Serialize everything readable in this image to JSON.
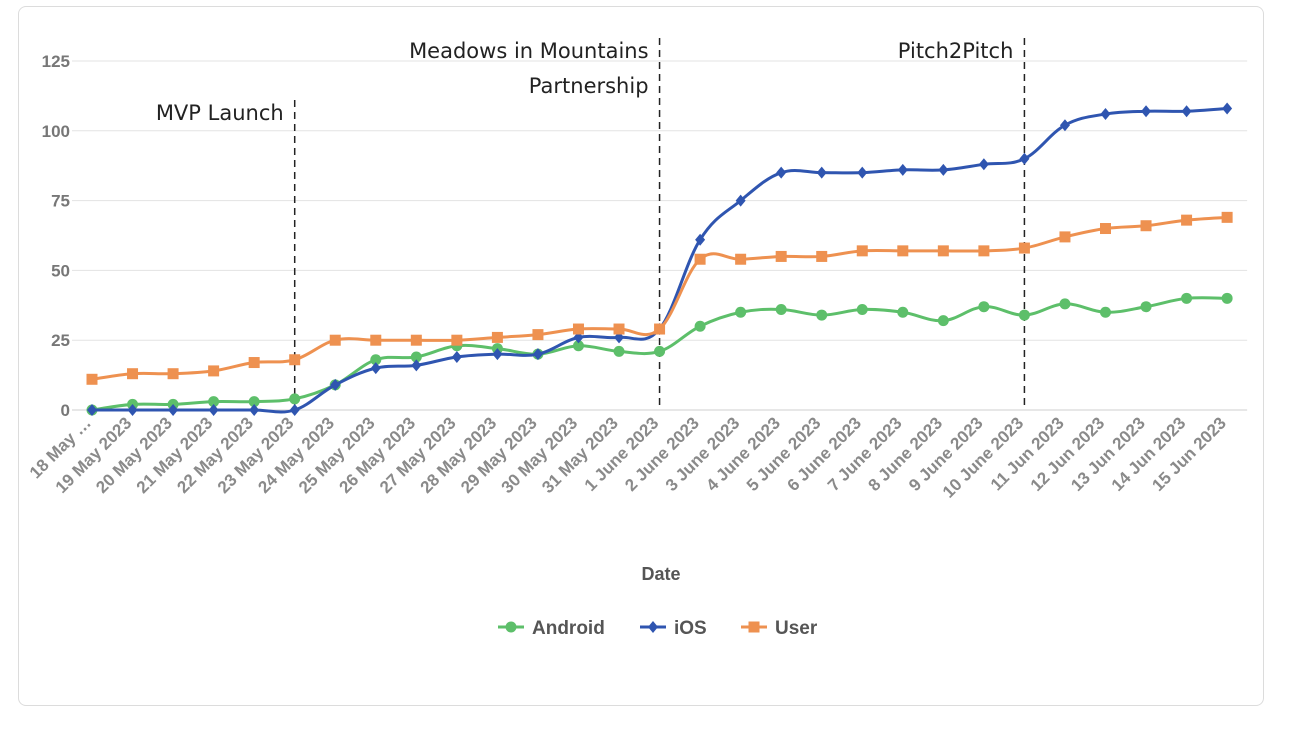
{
  "chart_data": {
    "type": "line",
    "xlabel": "Date",
    "ylabel": "",
    "ylim": [
      0,
      125
    ],
    "yticks": [
      0,
      25,
      50,
      75,
      100,
      125
    ],
    "grid": true,
    "legend_position": "bottom",
    "categories": [
      "18 May …",
      "19 May 2023",
      "20 May 2023",
      "21 May 2023",
      "22 May 2023",
      "23 May 2023",
      "24 May 2023",
      "25 May 2023",
      "26 May 2023",
      "27 May 2023",
      "28 May 2023",
      "29 May 2023",
      "30 May 2023",
      "31 May 2023",
      "1 June 2023",
      "2 June 2023",
      "3 June 2023",
      "4 June 2023",
      "5 June 2023",
      "6 June 2023",
      "7 June 2023",
      "8 June 2023",
      "9 June 2023",
      "10 June 2023",
      "11 Jun 2023",
      "12 Jun 2023",
      "13 Jun 2023",
      "14 Jun 2023",
      "15 Jun 2023"
    ],
    "series": [
      {
        "name": "Android",
        "color": "#5dbf6a",
        "marker": "circle",
        "values": [
          0,
          2,
          2,
          3,
          3,
          4,
          9,
          18,
          19,
          23,
          22,
          20,
          23,
          21,
          21,
          30,
          35,
          36,
          34,
          36,
          35,
          32,
          37,
          34,
          38,
          35,
          37,
          40,
          40
        ]
      },
      {
        "name": "iOS",
        "color": "#2f55b0",
        "marker": "diamond",
        "values": [
          0,
          0,
          0,
          0,
          0,
          0,
          9,
          15,
          16,
          19,
          20,
          20,
          26,
          26,
          29,
          61,
          75,
          85,
          85,
          85,
          86,
          86,
          88,
          90,
          102,
          106,
          107,
          107,
          108
        ]
      },
      {
        "name": "User",
        "color": "#ee9150",
        "marker": "square",
        "values": [
          11,
          13,
          13,
          14,
          17,
          18,
          25,
          25,
          25,
          25,
          26,
          27,
          29,
          29,
          29,
          54,
          54,
          55,
          55,
          57,
          57,
          57,
          57,
          58,
          62,
          65,
          66,
          68,
          69
        ]
      }
    ],
    "annotations": [
      {
        "after_index": 5,
        "lines": [
          "MVP Launch"
        ]
      },
      {
        "after_index": 14,
        "lines": [
          "Meadows in Mountains",
          "Partnership"
        ]
      },
      {
        "after_index": 23,
        "lines": [
          "Pitch2Pitch"
        ]
      }
    ]
  }
}
